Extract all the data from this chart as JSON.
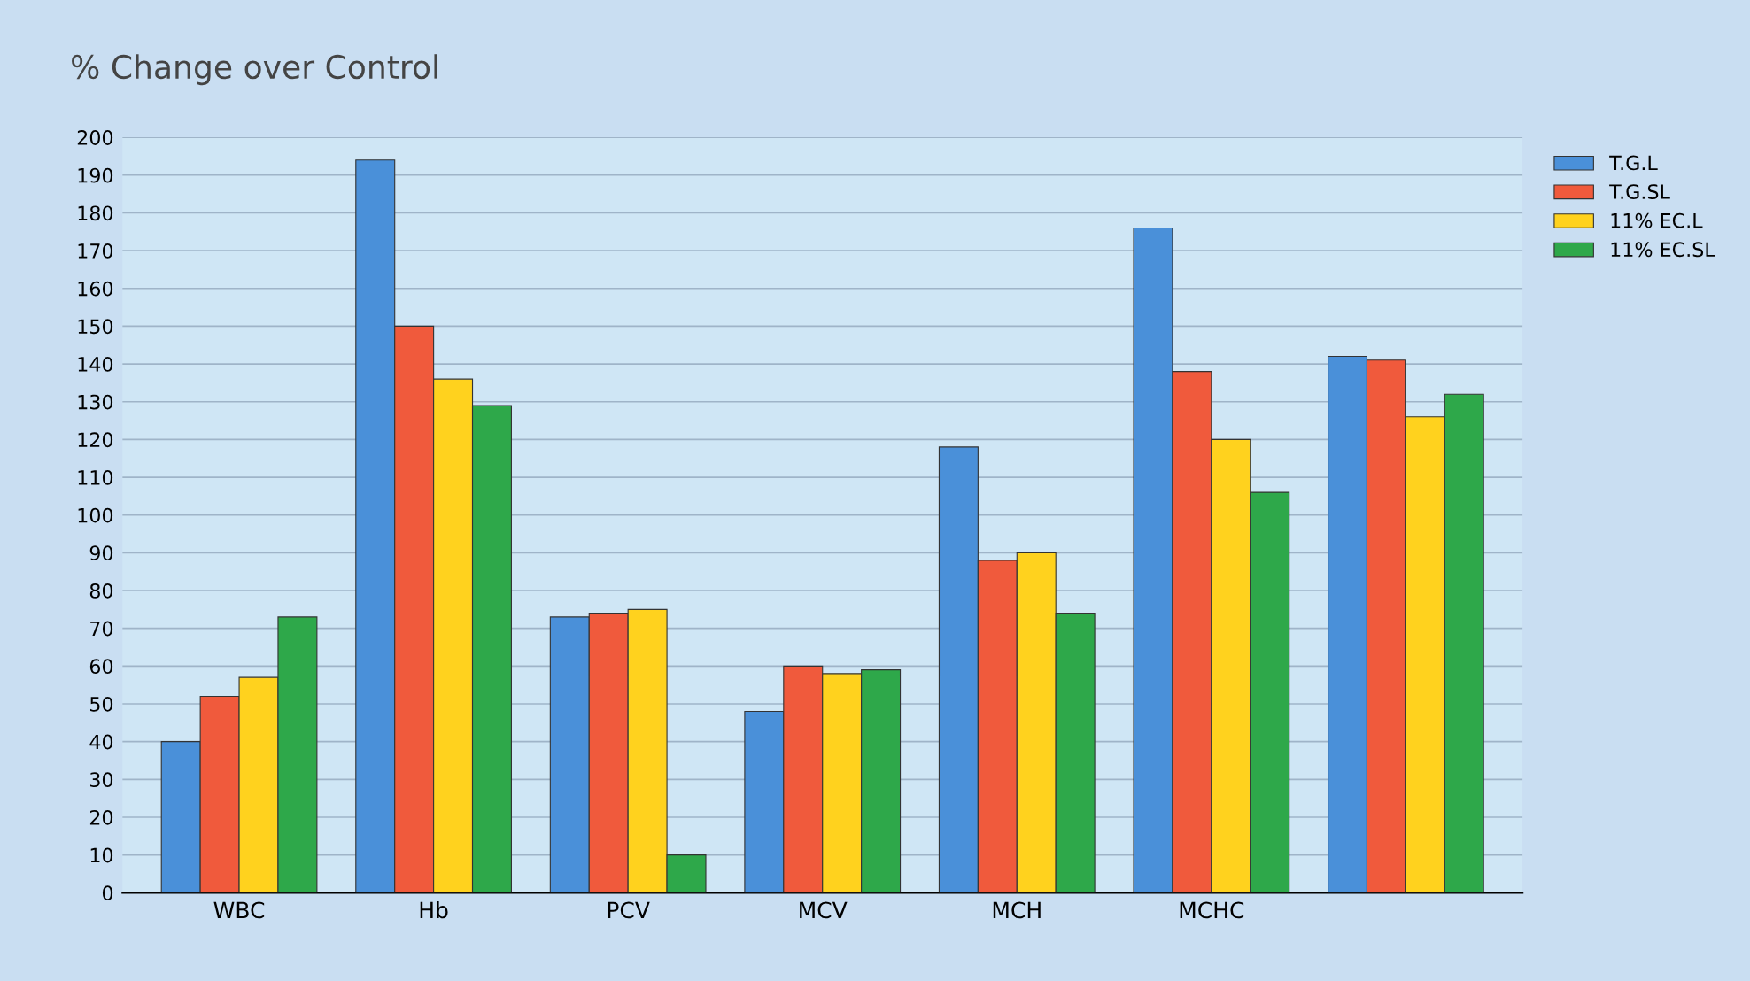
{
  "chart_data": {
    "type": "bar",
    "title": "% Change over Control",
    "categories": [
      "WBC",
      "Hb",
      "PCV",
      "MCV",
      "MCH",
      "MCHC",
      null
    ],
    "series": [
      {
        "name": "T.G.L",
        "color": "#4a90d9",
        "values": [
          40,
          194,
          73,
          48,
          118,
          176,
          142
        ]
      },
      {
        "name": "T.G.SL",
        "color": "#f05a3c",
        "values": [
          52,
          150,
          74,
          60,
          88,
          138,
          141
        ]
      },
      {
        "name": "11% EC.L",
        "color": "#ffd21e",
        "values": [
          57,
          136,
          75,
          58,
          90,
          120,
          126
        ]
      },
      {
        "name": "11% EC.SL",
        "color": "#2ea84a",
        "values": [
          73,
          129,
          10,
          59,
          74,
          106,
          132
        ]
      }
    ],
    "ylim": [
      0,
      200
    ],
    "yticks": [
      0,
      10,
      20,
      30,
      40,
      50,
      60,
      70,
      80,
      90,
      100,
      110,
      120,
      130,
      140,
      150,
      160,
      170,
      180,
      190,
      200
    ],
    "grid": "y",
    "legend": "top right"
  }
}
